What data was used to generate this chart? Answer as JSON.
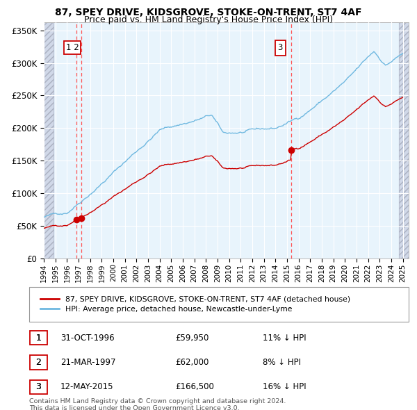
{
  "title1": "87, SPEY DRIVE, KIDSGROVE, STOKE-ON-TRENT, ST7 4AF",
  "title2": "Price paid vs. HM Land Registry's House Price Index (HPI)",
  "ylabel_ticks": [
    "£0",
    "£50K",
    "£100K",
    "£150K",
    "£200K",
    "£250K",
    "£300K",
    "£350K"
  ],
  "ytick_vals": [
    0,
    50000,
    100000,
    150000,
    200000,
    250000,
    300000,
    350000
  ],
  "ylim": [
    0,
    362000
  ],
  "xlim_start": 1994.0,
  "xlim_end": 2025.5,
  "transactions": [
    {
      "label": "1",
      "date": 1996.83,
      "price": 59950
    },
    {
      "label": "2",
      "date": 1997.22,
      "price": 62000
    },
    {
      "label": "3",
      "date": 2015.36,
      "price": 166500
    }
  ],
  "legend_red": "87, SPEY DRIVE, KIDSGROVE, STOKE-ON-TRENT, ST7 4AF (detached house)",
  "legend_blue": "HPI: Average price, detached house, Newcastle-under-Lyme",
  "footer1": "Contains HM Land Registry data © Crown copyright and database right 2024.",
  "footer2": "This data is licensed under the Open Government Licence v3.0.",
  "hpi_color": "#6fb8e0",
  "price_color": "#cc0000",
  "plot_bg": "#e8f4fc",
  "grid_color": "#ffffff",
  "dashed_color": "#ff5555",
  "table_rows": [
    [
      "1",
      "31-OCT-1996",
      "£59,950",
      "11% ↓ HPI"
    ],
    [
      "2",
      "21-MAR-1997",
      "£62,000",
      "8% ↓ HPI"
    ],
    [
      "3",
      "12-MAY-2015",
      "£166,500",
      "16% ↓ HPI"
    ]
  ]
}
